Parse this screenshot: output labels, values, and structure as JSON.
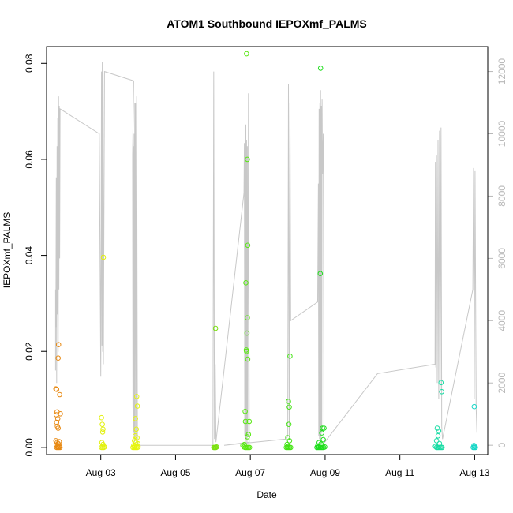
{
  "chart_data": {
    "type": "scatter",
    "title": "ATOM1 Southbound IEPOXmf_PALMS",
    "xlabel": "Date",
    "ylabel": "IEPOXmf_PALMS",
    "x_unit": "day of August 2016",
    "xlim": [
      1.55,
      13.35
    ],
    "ylim": [
      -0.0015,
      0.0835
    ],
    "x_ticks": [
      {
        "value": 3,
        "label": "Aug 03"
      },
      {
        "value": 5,
        "label": "Aug 05"
      },
      {
        "value": 7,
        "label": "Aug 07"
      },
      {
        "value": 9,
        "label": "Aug 09"
      },
      {
        "value": 11,
        "label": "Aug 11"
      },
      {
        "value": 13,
        "label": "Aug 13"
      }
    ],
    "y_ticks": [
      0.0,
      0.02,
      0.04,
      0.06,
      0.08
    ],
    "y_tick_labels": [
      "0.00",
      "0.02",
      "0.04",
      "0.06",
      "0.08"
    ],
    "y2lim": [
      -300,
      12800
    ],
    "y2_ticks": [
      0,
      2000,
      4000,
      6000,
      8000,
      10000,
      12000
    ],
    "y2_tick_labels": [
      "0",
      "2000",
      "4000",
      "6000",
      "8000",
      "10000",
      "12000"
    ],
    "grid": false,
    "points": [
      {
        "x": 1.8,
        "y": 0.0122,
        "c": "#e88a14"
      },
      {
        "x": 1.82,
        "y": 0.0121,
        "c": "#e88a14"
      },
      {
        "x": 1.83,
        "y": 0.0074,
        "c": "#e88a14"
      },
      {
        "x": 1.81,
        "y": 0.0068,
        "c": "#e88a14"
      },
      {
        "x": 1.85,
        "y": 0.006,
        "c": "#e88a14"
      },
      {
        "x": 1.82,
        "y": 0.0052,
        "c": "#e88a14"
      },
      {
        "x": 1.84,
        "y": 0.0044,
        "c": "#e88a14"
      },
      {
        "x": 1.86,
        "y": 0.004,
        "c": "#e88a14"
      },
      {
        "x": 1.87,
        "y": 0.0214,
        "c": "#e88a14"
      },
      {
        "x": 1.86,
        "y": 0.0186,
        "c": "#e88a14"
      },
      {
        "x": 1.9,
        "y": 0.011,
        "c": "#e88a14"
      },
      {
        "x": 1.92,
        "y": 0.007,
        "c": "#e88a14"
      },
      {
        "x": 1.8,
        "y": 0.0014,
        "c": "#e88a14"
      },
      {
        "x": 1.83,
        "y": 0.001,
        "c": "#e88a14"
      },
      {
        "x": 1.86,
        "y": 0.0008,
        "c": "#e88a14"
      },
      {
        "x": 1.89,
        "y": 0.0012,
        "c": "#e88a14"
      },
      {
        "x": 1.81,
        "y": 0.0004,
        "c": "#e88a14"
      },
      {
        "x": 1.84,
        "y": 0.0002,
        "c": "#e88a14"
      },
      {
        "x": 1.87,
        "y": 0.0001,
        "c": "#e88a14"
      },
      {
        "x": 1.9,
        "y": 0.0002,
        "c": "#e88a14"
      },
      {
        "x": 1.82,
        "y": 0.0,
        "c": "#e88a14"
      },
      {
        "x": 1.85,
        "y": 0.0,
        "c": "#e88a14"
      },
      {
        "x": 1.88,
        "y": 0.0,
        "c": "#e88a14"
      },
      {
        "x": 1.91,
        "y": 0.0,
        "c": "#e88a14"
      },
      {
        "x": 3.07,
        "y": 0.0396,
        "c": "#e2f10c"
      },
      {
        "x": 3.02,
        "y": 0.0062,
        "c": "#e2f10c"
      },
      {
        "x": 3.04,
        "y": 0.0048,
        "c": "#e2f10c"
      },
      {
        "x": 3.06,
        "y": 0.0038,
        "c": "#e2f10c"
      },
      {
        "x": 3.05,
        "y": 0.0032,
        "c": "#e2f10c"
      },
      {
        "x": 3.03,
        "y": 0.001,
        "c": "#e2f10c"
      },
      {
        "x": 3.06,
        "y": 0.0006,
        "c": "#e2f10c"
      },
      {
        "x": 3.02,
        "y": 0.0,
        "c": "#e2f10c"
      },
      {
        "x": 3.05,
        "y": 0.0,
        "c": "#e2f10c"
      },
      {
        "x": 3.08,
        "y": 0.0,
        "c": "#e2f10c"
      },
      {
        "x": 3.1,
        "y": 0.0001,
        "c": "#e2f10c"
      },
      {
        "x": 3.96,
        "y": 0.0106,
        "c": "#e6f50d"
      },
      {
        "x": 3.98,
        "y": 0.0086,
        "c": "#e6f50d"
      },
      {
        "x": 3.93,
        "y": 0.006,
        "c": "#e6f50d"
      },
      {
        "x": 3.95,
        "y": 0.0038,
        "c": "#e6f50d"
      },
      {
        "x": 3.92,
        "y": 0.0024,
        "c": "#e6f50d"
      },
      {
        "x": 3.97,
        "y": 0.002,
        "c": "#e6f50d"
      },
      {
        "x": 3.9,
        "y": 0.0014,
        "c": "#e6f50d"
      },
      {
        "x": 3.94,
        "y": 0.001,
        "c": "#e6f50d"
      },
      {
        "x": 3.99,
        "y": 0.0008,
        "c": "#e6f50d"
      },
      {
        "x": 3.88,
        "y": 0.0004,
        "c": "#e6f50d"
      },
      {
        "x": 3.91,
        "y": 0.0002,
        "c": "#e6f50d"
      },
      {
        "x": 3.86,
        "y": 0.0,
        "c": "#e6f50d"
      },
      {
        "x": 3.89,
        "y": 0.0,
        "c": "#e6f50d"
      },
      {
        "x": 3.92,
        "y": 0.0,
        "c": "#e6f50d"
      },
      {
        "x": 3.95,
        "y": 0.0,
        "c": "#e6f50d"
      },
      {
        "x": 3.98,
        "y": 0.0,
        "c": "#e6f50d"
      },
      {
        "x": 4.0,
        "y": 0.0001,
        "c": "#e6f50d"
      },
      {
        "x": 6.07,
        "y": 0.0248,
        "c": "#7be010"
      },
      {
        "x": 6.02,
        "y": 0.0,
        "c": "#7be010"
      },
      {
        "x": 6.04,
        "y": 0.0,
        "c": "#7be010"
      },
      {
        "x": 6.06,
        "y": 0.0,
        "c": "#7be010"
      },
      {
        "x": 6.08,
        "y": 0.0,
        "c": "#7be010"
      },
      {
        "x": 6.1,
        "y": 0.0001,
        "c": "#7be010"
      },
      {
        "x": 6.9,
        "y": 0.082,
        "c": "#58e812"
      },
      {
        "x": 6.92,
        "y": 0.06,
        "c": "#58e812"
      },
      {
        "x": 6.93,
        "y": 0.0421,
        "c": "#58e812"
      },
      {
        "x": 6.88,
        "y": 0.0343,
        "c": "#58e812"
      },
      {
        "x": 6.92,
        "y": 0.027,
        "c": "#58e812"
      },
      {
        "x": 6.91,
        "y": 0.0238,
        "c": "#58e812"
      },
      {
        "x": 6.89,
        "y": 0.0203,
        "c": "#58e812"
      },
      {
        "x": 6.9,
        "y": 0.02,
        "c": "#58e812"
      },
      {
        "x": 6.93,
        "y": 0.0184,
        "c": "#58e812"
      },
      {
        "x": 6.86,
        "y": 0.0075,
        "c": "#58e812"
      },
      {
        "x": 6.87,
        "y": 0.0054,
        "c": "#58e812"
      },
      {
        "x": 6.97,
        "y": 0.0054,
        "c": "#58e812"
      },
      {
        "x": 6.95,
        "y": 0.0027,
        "c": "#58e812"
      },
      {
        "x": 6.92,
        "y": 0.0022,
        "c": "#58e812"
      },
      {
        "x": 6.8,
        "y": 0.0004,
        "c": "#58e812"
      },
      {
        "x": 6.83,
        "y": 0.0001,
        "c": "#58e812"
      },
      {
        "x": 6.86,
        "y": 0.0,
        "c": "#58e812"
      },
      {
        "x": 6.89,
        "y": 0.0,
        "c": "#58e812"
      },
      {
        "x": 6.92,
        "y": 0.0,
        "c": "#58e812"
      },
      {
        "x": 6.95,
        "y": 0.0,
        "c": "#58e812"
      },
      {
        "x": 6.98,
        "y": 0.0,
        "c": "#58e812"
      },
      {
        "x": 6.84,
        "y": 0.0006,
        "c": "#58e812"
      },
      {
        "x": 8.06,
        "y": 0.019,
        "c": "#44e414"
      },
      {
        "x": 8.02,
        "y": 0.0096,
        "c": "#44e414"
      },
      {
        "x": 8.04,
        "y": 0.0084,
        "c": "#44e414"
      },
      {
        "x": 8.03,
        "y": 0.0048,
        "c": "#44e414"
      },
      {
        "x": 8.0,
        "y": 0.002,
        "c": "#44e414"
      },
      {
        "x": 8.05,
        "y": 0.0014,
        "c": "#44e414"
      },
      {
        "x": 7.98,
        "y": 0.0006,
        "c": "#44e414"
      },
      {
        "x": 8.01,
        "y": 0.0002,
        "c": "#44e414"
      },
      {
        "x": 7.96,
        "y": 0.0,
        "c": "#44e414"
      },
      {
        "x": 7.99,
        "y": 0.0,
        "c": "#44e414"
      },
      {
        "x": 8.02,
        "y": 0.0,
        "c": "#44e414"
      },
      {
        "x": 8.05,
        "y": 0.0,
        "c": "#44e414"
      },
      {
        "x": 8.08,
        "y": 0.0,
        "c": "#44e414"
      },
      {
        "x": 8.88,
        "y": 0.079,
        "c": "#1ede1c"
      },
      {
        "x": 8.87,
        "y": 0.0362,
        "c": "#1ede1c"
      },
      {
        "x": 8.93,
        "y": 0.004,
        "c": "#1ede1c"
      },
      {
        "x": 8.97,
        "y": 0.004,
        "c": "#1ede1c"
      },
      {
        "x": 8.91,
        "y": 0.003,
        "c": "#1ede1c"
      },
      {
        "x": 8.95,
        "y": 0.0016,
        "c": "#1ede1c"
      },
      {
        "x": 8.84,
        "y": 0.001,
        "c": "#1ede1c"
      },
      {
        "x": 8.89,
        "y": 0.0007,
        "c": "#1ede1c"
      },
      {
        "x": 8.8,
        "y": 0.0003,
        "c": "#1ede1c"
      },
      {
        "x": 8.83,
        "y": 0.0001,
        "c": "#1ede1c"
      },
      {
        "x": 8.78,
        "y": 0.0,
        "c": "#1ede1c"
      },
      {
        "x": 8.81,
        "y": 0.0,
        "c": "#1ede1c"
      },
      {
        "x": 8.84,
        "y": 0.0,
        "c": "#1ede1c"
      },
      {
        "x": 8.87,
        "y": 0.0,
        "c": "#1ede1c"
      },
      {
        "x": 8.9,
        "y": 0.0,
        "c": "#1ede1c"
      },
      {
        "x": 8.93,
        "y": 0.0,
        "c": "#1ede1c"
      },
      {
        "x": 8.96,
        "y": 0.0,
        "c": "#1ede1c"
      },
      {
        "x": 8.99,
        "y": 0.0001,
        "c": "#1ede1c"
      },
      {
        "x": 12.1,
        "y": 0.0135,
        "c": "#18dca4"
      },
      {
        "x": 12.12,
        "y": 0.0116,
        "c": "#18dca4"
      },
      {
        "x": 12.0,
        "y": 0.004,
        "c": "#18dca4"
      },
      {
        "x": 12.04,
        "y": 0.0034,
        "c": "#18dca4"
      },
      {
        "x": 12.02,
        "y": 0.0024,
        "c": "#18dca4"
      },
      {
        "x": 11.98,
        "y": 0.0014,
        "c": "#18dca4"
      },
      {
        "x": 12.06,
        "y": 0.0008,
        "c": "#18dca4"
      },
      {
        "x": 11.95,
        "y": 0.0002,
        "c": "#18dca4"
      },
      {
        "x": 11.98,
        "y": 0.0,
        "c": "#18dca4"
      },
      {
        "x": 12.01,
        "y": 0.0,
        "c": "#18dca4"
      },
      {
        "x": 12.04,
        "y": 0.0,
        "c": "#18dca4"
      },
      {
        "x": 12.07,
        "y": 0.0,
        "c": "#18dca4"
      },
      {
        "x": 12.1,
        "y": 0.0,
        "c": "#18dca4"
      },
      {
        "x": 12.13,
        "y": 0.0,
        "c": "#18dca4"
      },
      {
        "x": 12.99,
        "y": 0.0085,
        "c": "#16d6c6"
      },
      {
        "x": 12.98,
        "y": 0.0004,
        "c": "#16d6c6"
      },
      {
        "x": 13.0,
        "y": 0.0002,
        "c": "#16d6c6"
      },
      {
        "x": 12.96,
        "y": 0.0,
        "c": "#16d6c6"
      },
      {
        "x": 12.99,
        "y": 0.0,
        "c": "#16d6c6"
      },
      {
        "x": 13.02,
        "y": 0.0,
        "c": "#16d6c6"
      }
    ],
    "line_color": "#c8c8c8",
    "line_series": [
      [
        1.79,
        2400
      ],
      [
        1.79,
        5000
      ],
      [
        1.8,
        3800
      ],
      [
        1.81,
        8600
      ],
      [
        1.82,
        2000
      ],
      [
        1.83,
        9600
      ],
      [
        1.84,
        4200
      ],
      [
        1.85,
        10500
      ],
      [
        1.86,
        3000
      ],
      [
        1.87,
        11200
      ],
      [
        1.88,
        5000
      ],
      [
        1.89,
        10900
      ],
      [
        1.9,
        6000
      ],
      [
        1.91,
        10800
      ],
      [
        2.96,
        10000
      ],
      [
        3.0,
        2200
      ],
      [
        3.02,
        12000
      ],
      [
        3.03,
        3200
      ],
      [
        3.04,
        12300
      ],
      [
        3.05,
        3000
      ],
      [
        3.06,
        12050
      ],
      [
        3.07,
        2600
      ],
      [
        3.1,
        12000
      ],
      [
        3.88,
        11700
      ],
      [
        3.85,
        9300
      ],
      [
        3.86,
        1200
      ],
      [
        3.87,
        9600
      ],
      [
        3.88,
        400
      ],
      [
        3.89,
        10000
      ],
      [
        3.9,
        100
      ],
      [
        3.91,
        11000
      ],
      [
        3.92,
        300
      ],
      [
        3.93,
        11000
      ],
      [
        3.95,
        200
      ],
      [
        3.96,
        11200
      ],
      [
        3.98,
        100
      ],
      [
        4.0,
        0
      ],
      [
        6.0,
        0
      ],
      [
        6.02,
        12000
      ],
      [
        6.04,
        200
      ],
      [
        6.06,
        2600
      ],
      [
        6.08,
        100
      ],
      [
        6.83,
        8100
      ],
      [
        6.84,
        9700
      ],
      [
        6.85,
        300
      ],
      [
        6.86,
        9700
      ],
      [
        6.87,
        100
      ],
      [
        6.88,
        10300
      ],
      [
        6.89,
        200
      ],
      [
        6.9,
        9800
      ],
      [
        6.91,
        100
      ],
      [
        6.92,
        9600
      ],
      [
        6.93,
        300
      ],
      [
        6.95,
        11300
      ],
      [
        6.97,
        100
      ],
      [
        6.3,
        0
      ],
      [
        7.96,
        200
      ],
      [
        8.0,
        300
      ],
      [
        8.02,
        11600
      ],
      [
        8.04,
        200
      ],
      [
        8.06,
        11000
      ],
      [
        8.08,
        4000
      ],
      [
        8.8,
        4600
      ],
      [
        8.82,
        8400
      ],
      [
        8.83,
        300
      ],
      [
        8.84,
        10800
      ],
      [
        8.85,
        200
      ],
      [
        8.86,
        11000
      ],
      [
        8.87,
        300
      ],
      [
        8.88,
        11400
      ],
      [
        8.89,
        200
      ],
      [
        8.9,
        10900
      ],
      [
        8.91,
        400
      ],
      [
        8.92,
        11100
      ],
      [
        8.93,
        8700
      ],
      [
        8.95,
        10000
      ],
      [
        8.97,
        200
      ],
      [
        8.99,
        100
      ],
      [
        10.4,
        2300
      ],
      [
        11.94,
        2600
      ],
      [
        11.95,
        9100
      ],
      [
        11.96,
        2500
      ],
      [
        11.98,
        9300
      ],
      [
        12.0,
        2000
      ],
      [
        12.02,
        9800
      ],
      [
        12.04,
        1500
      ],
      [
        12.06,
        10100
      ],
      [
        12.08,
        1800
      ],
      [
        12.1,
        10200
      ],
      [
        12.12,
        600
      ],
      [
        12.14,
        200
      ],
      [
        12.95,
        5000
      ],
      [
        12.97,
        8900
      ],
      [
        12.99,
        1500
      ],
      [
        13.01,
        8800
      ],
      [
        13.04,
        1200
      ],
      [
        13.06,
        400
      ]
    ]
  }
}
